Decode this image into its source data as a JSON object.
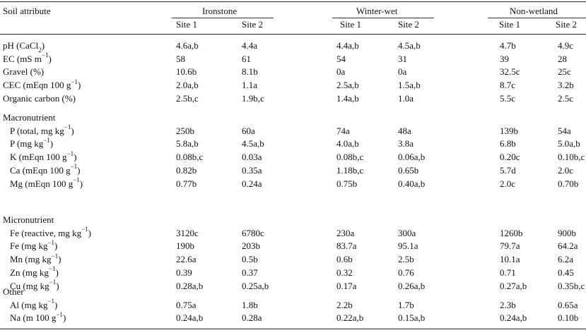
{
  "header": {
    "attribute_label": "Soil attribute",
    "groups": [
      "Ironstone",
      "Winter-wet",
      "Non-wetland"
    ],
    "sites": [
      "Site 1",
      "Site 2",
      "Site 1",
      "Site 2",
      "Site 1",
      "Site 2"
    ]
  },
  "sections": [
    {
      "title": "",
      "rows": [
        {
          "label": "pH (CaCl",
          "sub": "2",
          "label_after": ")",
          "values": [
            "4.6a,b",
            "4.4a",
            "4.4a,b",
            "4.5a,b",
            "4.7b",
            "4.9c"
          ]
        },
        {
          "label": "EC (mS m",
          "sup": "−1",
          "label_after": ")",
          "values": [
            "58",
            "61",
            "54",
            "31",
            "39",
            "28"
          ]
        },
        {
          "label": "Gravel (%)",
          "values": [
            "10.6b",
            "8.1b",
            "0a",
            "0a",
            "32.5c",
            "25c"
          ]
        },
        {
          "label": "CEC (mEqn 100 g",
          "sup": "−1",
          "label_after": ")",
          "values": [
            "2.0a,b",
            "1.1a",
            "2.5a,b",
            "1.5a,b",
            "8.7c",
            "3.2b"
          ]
        },
        {
          "label": "Organic carbon (%)",
          "values": [
            "2.5b,c",
            "1.9b,c",
            "1.4a,b",
            "1.0a",
            "5.5c",
            "2.5c"
          ]
        }
      ]
    },
    {
      "title": "Macronutrient",
      "rows": [
        {
          "label": "P (total, mg kg",
          "sup": "−1",
          "label_after": ")",
          "values": [
            "250b",
            "60a",
            "74a",
            "48a",
            "139b",
            "54a"
          ]
        },
        {
          "label": "P (mg kg",
          "sup": "−1",
          "label_after": ")",
          "values": [
            "5.8a,b",
            "4.5a,b",
            "4.0a,b",
            "3.8a",
            "6.8b",
            "5.0a,b"
          ]
        },
        {
          "label": "K (mEqn 100 g",
          "sup": "−1",
          "label_after": ")",
          "values": [
            "0.08b,c",
            "0.03a",
            "0.08b,c",
            "0.06a,b",
            "0.20c",
            "0.10b,c"
          ]
        },
        {
          "label": "Ca (mEqn 100 g",
          "sup": "−1",
          "label_after": ")",
          "values": [
            "0.82b",
            "0.35a",
            "1.18b,c",
            "0.65b",
            "5.7d",
            "2.0c"
          ]
        },
        {
          "label": "Mg (mEqn 100 g",
          "sup": "−1",
          "label_after": ")",
          "values": [
            "0.77b",
            "0.24a",
            "0.75b",
            "0.40a,b",
            "2.0c",
            "0.70b"
          ]
        }
      ]
    },
    {
      "title": "Micronutrient",
      "rows": [
        {
          "label": "Fe (reactive, mg kg",
          "sup": "−1",
          "label_after": ")",
          "values": [
            "3120c",
            "6780c",
            "230a",
            "300a",
            "1260b",
            "900b"
          ]
        },
        {
          "label": "Fe (mg kg",
          "sup": "−1",
          "label_after": ")",
          "values": [
            "190b",
            "203b",
            "83.7a",
            "95.1a",
            "79.7a",
            "64.2a"
          ]
        },
        {
          "label": "Mn (mg kg",
          "sup": "−1",
          "label_after": ")",
          "values": [
            "22.6a",
            "0.5b",
            "0.6b",
            "2.5b",
            "10.1a",
            "6.2a"
          ]
        },
        {
          "label": "Zn (mg kg",
          "sup": "−1",
          "label_after": ")",
          "values": [
            "0.39",
            "0.37",
            "0.32",
            "0.76",
            "0.71",
            "0.45"
          ]
        },
        {
          "label": "Cu (mg kg",
          "sup": "−1",
          "label_after": ")",
          "values": [
            "0.28a,b",
            "0.25a,b",
            "0.17a",
            "0.26a,b",
            "0.27a,b",
            "0.35b,c"
          ]
        }
      ]
    },
    {
      "title": "Other",
      "rows": [
        {
          "label": "Al (mg kg",
          "sup": "−1",
          "label_after": ")",
          "values": [
            "0.75a",
            "1.8b",
            "2.2b",
            "1.7b",
            "2.3b",
            "0.65a"
          ]
        },
        {
          "label": "Na (m 100 g",
          "sup": "−1",
          "label_after": ")",
          "values": [
            "0.24a,b",
            "0.28a",
            "0.22a,b",
            "0.15a,b",
            "0.24a,b",
            "0.10b"
          ]
        }
      ]
    }
  ]
}
